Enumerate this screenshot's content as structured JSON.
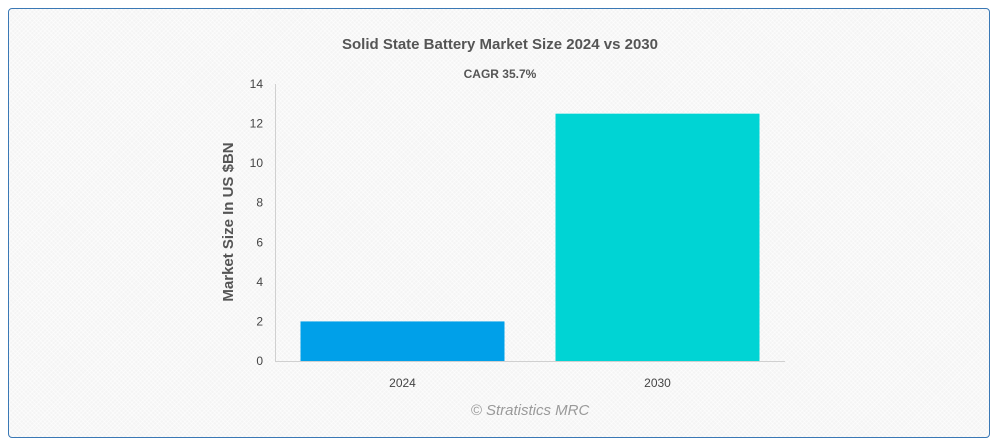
{
  "chart_data": {
    "type": "bar",
    "title": "Solid State Battery Market Size 2024 vs 2030",
    "annotation": "CAGR 35.7%",
    "xlabel": "",
    "ylabel": "Market Size In US $BN",
    "categories": [
      "2024",
      "2030"
    ],
    "values": [
      2.0,
      12.5
    ],
    "ylim": [
      0,
      14
    ],
    "yticks": [
      0,
      2,
      4,
      6,
      8,
      10,
      12,
      14
    ],
    "grid": false,
    "bar_colors": [
      "#00a0e9",
      "#00d4d4"
    ]
  },
  "footer": {
    "credit": "© Stratistics MRC"
  },
  "colors": {
    "border": "#3a78b5",
    "axis": "#d0d0d0",
    "text": "#555555"
  }
}
